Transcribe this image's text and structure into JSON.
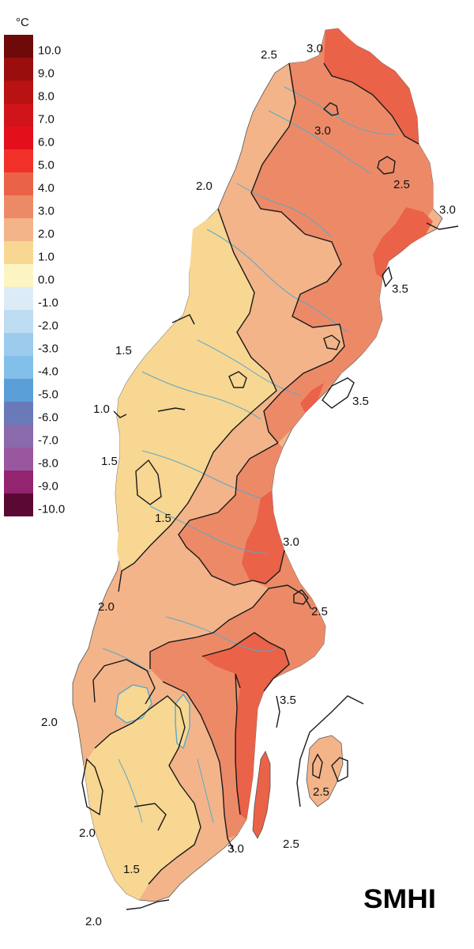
{
  "unit": "°C",
  "legend": [
    {
      "label": "10.0",
      "color": "#6e0a0a"
    },
    {
      "label": "9.0",
      "color": "#9a0e0e"
    },
    {
      "label": "8.0",
      "color": "#b81212"
    },
    {
      "label": "7.0",
      "color": "#d0141a"
    },
    {
      "label": "6.0",
      "color": "#e3101c"
    },
    {
      "label": "5.0",
      "color": "#f2302a"
    },
    {
      "label": "4.0",
      "color": "#ea6248"
    },
    {
      "label": "3.0",
      "color": "#ec8a68"
    },
    {
      "label": "2.0",
      "color": "#f3b48a"
    },
    {
      "label": "1.0",
      "color": "#f8d792"
    },
    {
      "label": "0.0",
      "color": "#fdf4c4"
    },
    {
      "label": "-1.0",
      "color": "#dcecf7"
    },
    {
      "label": "-2.0",
      "color": "#bddcf2"
    },
    {
      "label": "-3.0",
      "color": "#9ccbed"
    },
    {
      "label": "-4.0",
      "color": "#82bfe9"
    },
    {
      "label": "-5.0",
      "color": "#5a9fd7"
    },
    {
      "label": "-6.0",
      "color": "#6a7ab8"
    },
    {
      "label": "-7.0",
      "color": "#8a6aab"
    },
    {
      "label": "-8.0",
      "color": "#98579e"
    },
    {
      "label": "-9.0",
      "color": "#93246f"
    },
    {
      "label": "-10.0",
      "color": "#5a0a32"
    }
  ],
  "contour_labels": [
    {
      "text": "2.5"
    },
    {
      "text": "3.0"
    },
    {
      "text": "3.0"
    },
    {
      "text": "2.5"
    },
    {
      "text": "3.0"
    },
    {
      "text": "2.0"
    },
    {
      "text": "3.5"
    },
    {
      "text": "1.5"
    },
    {
      "text": "3.5"
    },
    {
      "text": "1.0"
    },
    {
      "text": "1.5"
    },
    {
      "text": "1.5"
    },
    {
      "text": "3.0"
    },
    {
      "text": "2.0"
    },
    {
      "text": "2.5"
    },
    {
      "text": "3.5"
    },
    {
      "text": "2.0"
    },
    {
      "text": "2.5"
    },
    {
      "text": "2.0"
    },
    {
      "text": "2.5"
    },
    {
      "text": "3.0"
    },
    {
      "text": "1.5"
    },
    {
      "text": "2.0"
    }
  ],
  "logo": "SMHI",
  "colors": {
    "zone_1_2": "#f8d792",
    "zone_2_3": "#f3b48a",
    "zone_3_4": "#ec8a68",
    "zone_4_5": "#ea6248",
    "water": "#5aa8c8",
    "contour": "#1a1a1a"
  }
}
